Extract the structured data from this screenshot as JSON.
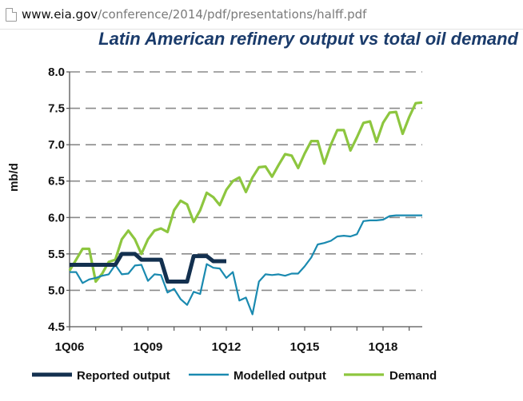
{
  "browser": {
    "url_host": "www.eia.gov",
    "url_path": "/conference/2014/pdf/presentations/halff.pdf"
  },
  "chart_data": {
    "type": "line",
    "title": "Latin American refinery output vs total oil demand",
    "ylabel": "mb/d",
    "xlabel": "",
    "ylim": [
      4.5,
      8.0
    ],
    "yticks": [
      "4.5",
      "5.0",
      "5.5",
      "6.0",
      "6.5",
      "7.0",
      "7.5",
      "8.0"
    ],
    "xticks": [
      "1Q06",
      "1Q09",
      "1Q12",
      "1Q15",
      "1Q18"
    ],
    "grid": "horizontal dashed",
    "legend": "bottom",
    "series": [
      {
        "name": "Reported output",
        "color": "#13304f",
        "values": [
          5.35,
          5.35,
          5.35,
          5.35,
          5.35,
          5.35,
          5.35,
          5.35,
          5.5,
          5.5,
          5.5,
          5.42,
          5.42,
          5.42,
          5.42,
          5.12,
          5.12,
          5.12,
          5.12,
          5.47,
          5.47,
          5.47,
          5.4,
          5.4,
          5.4
        ]
      },
      {
        "name": "Modelled output",
        "color": "#1a8ab0",
        "values": [
          5.25,
          5.25,
          5.1,
          5.15,
          5.17,
          5.2,
          5.22,
          5.35,
          5.22,
          5.23,
          5.34,
          5.35,
          5.13,
          5.22,
          5.21,
          4.97,
          5.02,
          4.88,
          4.8,
          4.98,
          4.95,
          5.36,
          5.31,
          5.3,
          5.17,
          5.25,
          4.86,
          4.9,
          4.67,
          5.12,
          5.22,
          5.21,
          5.22,
          5.2,
          5.23,
          5.23,
          5.33,
          5.45,
          5.63,
          5.65,
          5.68,
          5.74,
          5.75,
          5.74,
          5.77,
          5.95,
          5.96,
          5.96,
          5.97,
          6.02,
          6.03,
          6.03,
          6.03,
          6.03,
          6.03
        ]
      },
      {
        "name": "Demand",
        "color": "#8dc63f",
        "values": [
          5.27,
          5.42,
          5.57,
          5.57,
          5.12,
          5.23,
          5.39,
          5.42,
          5.7,
          5.82,
          5.7,
          5.5,
          5.7,
          5.82,
          5.85,
          5.8,
          6.1,
          6.23,
          6.18,
          5.94,
          6.1,
          6.34,
          6.28,
          6.17,
          6.38,
          6.5,
          6.55,
          6.35,
          6.55,
          6.69,
          6.7,
          6.56,
          6.72,
          6.87,
          6.85,
          6.68,
          6.88,
          7.05,
          7.05,
          6.74,
          7.0,
          7.2,
          7.2,
          6.92,
          7.1,
          7.3,
          7.32,
          7.04,
          7.3,
          7.44,
          7.45,
          7.15,
          7.38,
          7.57,
          7.58
        ]
      }
    ]
  }
}
